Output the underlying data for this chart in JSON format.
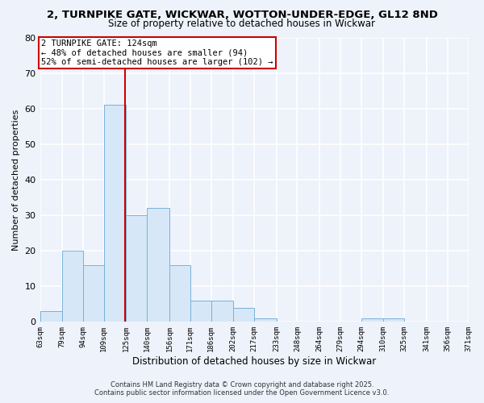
{
  "title": "2, TURNPIKE GATE, WICKWAR, WOTTON-UNDER-EDGE, GL12 8ND",
  "subtitle": "Size of property relative to detached houses in Wickwar",
  "xlabel": "Distribution of detached houses by size in Wickwar",
  "ylabel": "Number of detached properties",
  "bar_color": "#d6e8f7",
  "bar_edge_color": "#7ab0d8",
  "background_color": "#eef2fb",
  "grid_color": "white",
  "bin_edges": [
    63,
    79,
    94,
    109,
    125,
    140,
    156,
    171,
    186,
    202,
    217,
    233,
    248,
    264,
    279,
    294,
    310,
    325,
    341,
    356,
    371
  ],
  "bin_labels": [
    "63sqm",
    "79sqm",
    "94sqm",
    "109sqm",
    "125sqm",
    "140sqm",
    "156sqm",
    "171sqm",
    "186sqm",
    "202sqm",
    "217sqm",
    "233sqm",
    "248sqm",
    "264sqm",
    "279sqm",
    "294sqm",
    "310sqm",
    "325sqm",
    "341sqm",
    "356sqm",
    "371sqm"
  ],
  "counts": [
    3,
    20,
    16,
    61,
    30,
    32,
    16,
    6,
    6,
    4,
    1,
    0,
    0,
    0,
    0,
    1,
    1,
    0,
    0,
    0
  ],
  "vline_x": 124,
  "vline_color": "#cc0000",
  "annotation_line1": "2 TURNPIKE GATE: 124sqm",
  "annotation_line2": "← 48% of detached houses are smaller (94)",
  "annotation_line3": "52% of semi-detached houses are larger (102) →",
  "annotation_box_edge": "#cc0000",
  "ylim": [
    0,
    80
  ],
  "yticks": [
    0,
    10,
    20,
    30,
    40,
    50,
    60,
    70,
    80
  ],
  "footer_line1": "Contains HM Land Registry data © Crown copyright and database right 2025.",
  "footer_line2": "Contains public sector information licensed under the Open Government Licence v3.0."
}
